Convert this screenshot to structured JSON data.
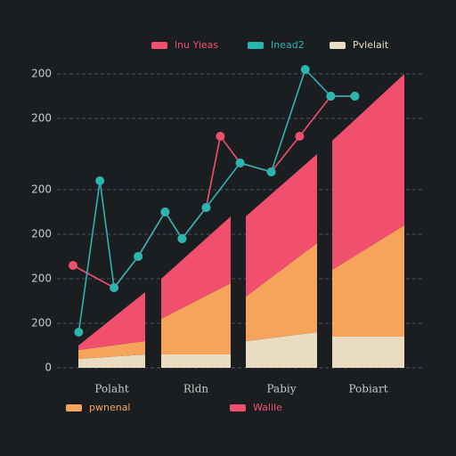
{
  "chart_data": {
    "type": "area-line",
    "categories": [
      "Polaht",
      "Rldn",
      "Pabiy",
      "Pobiart"
    ],
    "ylim": [
      0,
      7
    ],
    "yticks": [
      0,
      {
        "value": 1,
        "label": "200"
      },
      {
        "value": 2,
        "label": "200"
      },
      {
        "value": 3,
        "label": "200"
      },
      {
        "value": 4,
        "label": "200"
      },
      {
        "value": 5.6,
        "label": "200"
      },
      {
        "value": 6.6,
        "label": "200"
      }
    ],
    "xlim": [
      0,
      10
    ],
    "grid": true,
    "areas": [
      {
        "name": "Pvlelait",
        "color": "#e9dcc0",
        "values": [
          [
            0.2,
            0.3
          ],
          [
            0.3,
            0.3
          ],
          [
            0.6,
            0.8
          ],
          [
            0.7,
            0.7
          ]
        ]
      },
      {
        "name": "pwnenal",
        "color": "#f6a45c",
        "values": [
          [
            0.2,
            0.3
          ],
          [
            0.8,
            1.6
          ],
          [
            1.0,
            2.0
          ],
          [
            1.5,
            2.5
          ]
        ]
      },
      {
        "name": "Walile",
        "color": "#f0506e",
        "values": [
          [
            0.1,
            1.1
          ],
          [
            0.9,
            1.5
          ],
          [
            1.8,
            2.0
          ],
          [
            2.9,
            3.4
          ]
        ]
      }
    ],
    "series": [
      {
        "name": "lnu Yieas",
        "color": "#f0506e",
        "x": [
          0,
          1.45,
          2.3,
          3.25,
          3.85,
          4.7,
          5.2,
          5.9,
          7,
          8,
          9.1,
          9.95
        ],
        "values": [
          2.3,
          1.8,
          2.5,
          3.5,
          2.9,
          3.6,
          5.2,
          4.6,
          4.4,
          5.2,
          6.1,
          6.1
        ]
      },
      {
        "name": "Inead2",
        "color": "#2bb5b0",
        "x": [
          0.2,
          0.95,
          1.45,
          2.3,
          3.25,
          3.85,
          4.7,
          5.9,
          7,
          8.2,
          9.1,
          9.95
        ],
        "values": [
          0.8,
          4.2,
          1.8,
          2.5,
          3.5,
          2.9,
          3.6,
          4.6,
          4.4,
          6.7,
          6.1,
          6.1
        ]
      }
    ]
  }
}
